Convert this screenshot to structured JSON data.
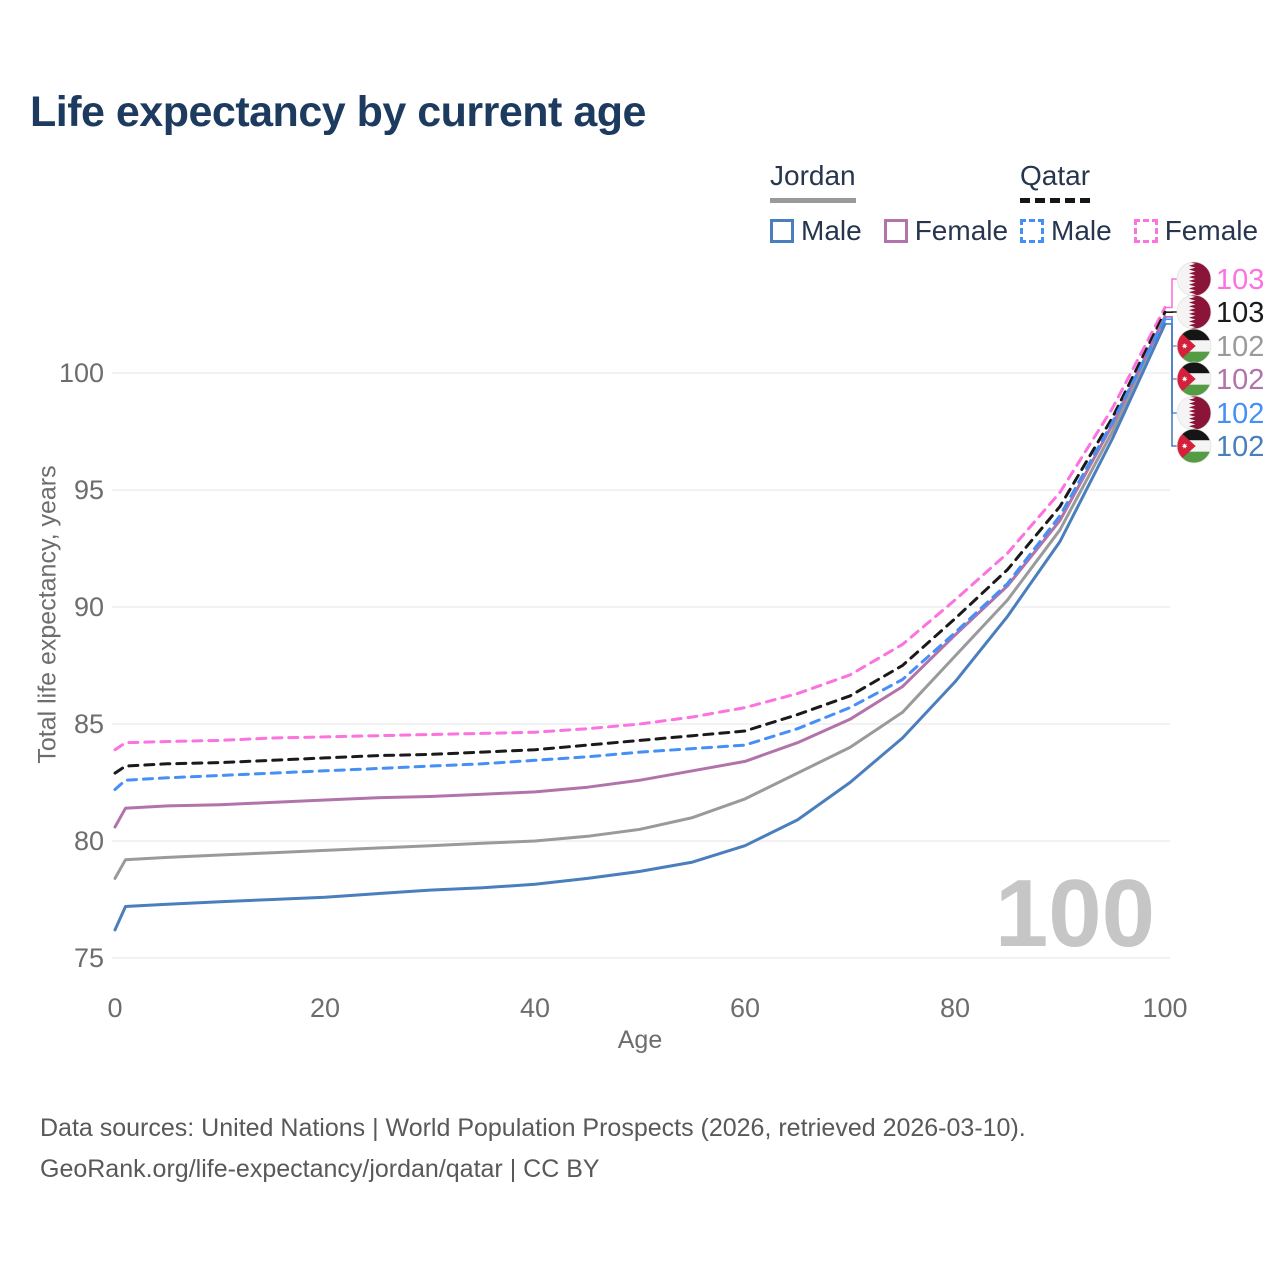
{
  "title": "Life expectancy by current age",
  "legend": {
    "groups": [
      {
        "country": "Jordan",
        "line_style": "solid",
        "line_color": "#9a9a9a",
        "items": [
          {
            "label": "Male",
            "color": "#4a7ebc",
            "dash": "solid"
          },
          {
            "label": "Female",
            "color": "#b273aa",
            "dash": "solid"
          }
        ]
      },
      {
        "country": "Qatar",
        "line_style": "dashed",
        "line_color": "#161616",
        "items": [
          {
            "label": "Male",
            "color": "#4590f7",
            "dash": "dashed"
          },
          {
            "label": "Female",
            "color": "#fc72de",
            "dash": "dashed"
          }
        ]
      }
    ]
  },
  "watermark_age": "100",
  "footer": {
    "line1": "Data sources: United Nations | World Population Prospects (2026, retrieved 2026-03-10).",
    "line2": "GeoRank.org/life-expectancy/jordan/qatar | CC BY"
  },
  "chart_data": {
    "type": "line",
    "title": "Life expectancy by current age",
    "xlabel": "Age",
    "ylabel": "Total life expectancy, years",
    "xlim": [
      0,
      100
    ],
    "ylim": [
      75,
      103.5
    ],
    "xticks": [
      0,
      20,
      40,
      60,
      80,
      100
    ],
    "yticks": [
      75,
      80,
      85,
      90,
      95,
      100
    ],
    "grid": "horizontal",
    "legend_position": "top-right",
    "x": [
      0,
      1,
      5,
      10,
      15,
      20,
      25,
      30,
      35,
      40,
      45,
      50,
      55,
      60,
      65,
      70,
      75,
      80,
      85,
      90,
      95,
      100
    ],
    "series": [
      {
        "name": "Qatar Female",
        "country": "Qatar",
        "sex": "Female",
        "color": "#fc72de",
        "dash": "dashed",
        "end_label": "103",
        "values": [
          83.9,
          84.2,
          84.25,
          84.3,
          84.4,
          84.45,
          84.5,
          84.55,
          84.6,
          84.65,
          84.8,
          85.0,
          85.3,
          85.7,
          86.3,
          87.1,
          88.4,
          90.3,
          92.3,
          94.9,
          98.5,
          102.8
        ]
      },
      {
        "name": "Qatar (both sexes)",
        "country": "Qatar",
        "sex": "Both",
        "color": "#1a1a1a",
        "dash": "dashed",
        "end_label": "103",
        "values": [
          82.9,
          83.2,
          83.3,
          83.35,
          83.45,
          83.55,
          83.65,
          83.7,
          83.8,
          83.9,
          84.1,
          84.3,
          84.5,
          84.7,
          85.4,
          86.2,
          87.5,
          89.5,
          91.6,
          94.3,
          98.1,
          102.6
        ]
      },
      {
        "name": "Jordan (both sexes)",
        "country": "Jordan",
        "sex": "Both",
        "color": "#9a9a9a",
        "dash": "solid",
        "end_label": "102",
        "values": [
          78.4,
          79.2,
          79.3,
          79.4,
          79.5,
          79.6,
          79.7,
          79.8,
          79.9,
          80.0,
          80.2,
          80.5,
          81.0,
          81.8,
          82.9,
          84.0,
          85.5,
          87.9,
          90.3,
          93.3,
          97.5,
          102.4
        ]
      },
      {
        "name": "Jordan Female",
        "country": "Jordan",
        "sex": "Female",
        "color": "#b273aa",
        "dash": "solid",
        "end_label": "102",
        "values": [
          80.6,
          81.4,
          81.5,
          81.55,
          81.65,
          81.75,
          81.85,
          81.9,
          82.0,
          82.1,
          82.3,
          82.6,
          83.0,
          83.4,
          84.2,
          85.2,
          86.6,
          88.8,
          90.9,
          93.7,
          97.8,
          102.4
        ]
      },
      {
        "name": "Qatar Male",
        "country": "Qatar",
        "sex": "Male",
        "color": "#4590f7",
        "dash": "dashed",
        "end_label": "102",
        "values": [
          82.2,
          82.6,
          82.7,
          82.8,
          82.9,
          83.0,
          83.1,
          83.2,
          83.3,
          83.45,
          83.6,
          83.8,
          83.95,
          84.1,
          84.8,
          85.7,
          86.9,
          88.9,
          91.0,
          93.9,
          97.9,
          102.3
        ]
      },
      {
        "name": "Jordan Male",
        "country": "Jordan",
        "sex": "Male",
        "color": "#4a7ebc",
        "dash": "solid",
        "end_label": "102",
        "values": [
          76.2,
          77.2,
          77.3,
          77.4,
          77.5,
          77.6,
          77.75,
          77.9,
          78.0,
          78.15,
          78.4,
          78.7,
          79.1,
          79.8,
          80.9,
          82.5,
          84.4,
          86.8,
          89.6,
          92.8,
          97.2,
          102.1
        ]
      }
    ],
    "end_labels": [
      {
        "flag": "qatar",
        "value": "103",
        "color": "#fc72de"
      },
      {
        "flag": "qatar",
        "value": "103",
        "color": "#1a1a1a"
      },
      {
        "flag": "jordan",
        "value": "102",
        "color": "#9a9a9a"
      },
      {
        "flag": "jordan",
        "value": "102",
        "color": "#b273aa"
      },
      {
        "flag": "qatar",
        "value": "102",
        "color": "#4590f7"
      },
      {
        "flag": "jordan",
        "value": "102",
        "color": "#4a7ebc"
      }
    ]
  }
}
